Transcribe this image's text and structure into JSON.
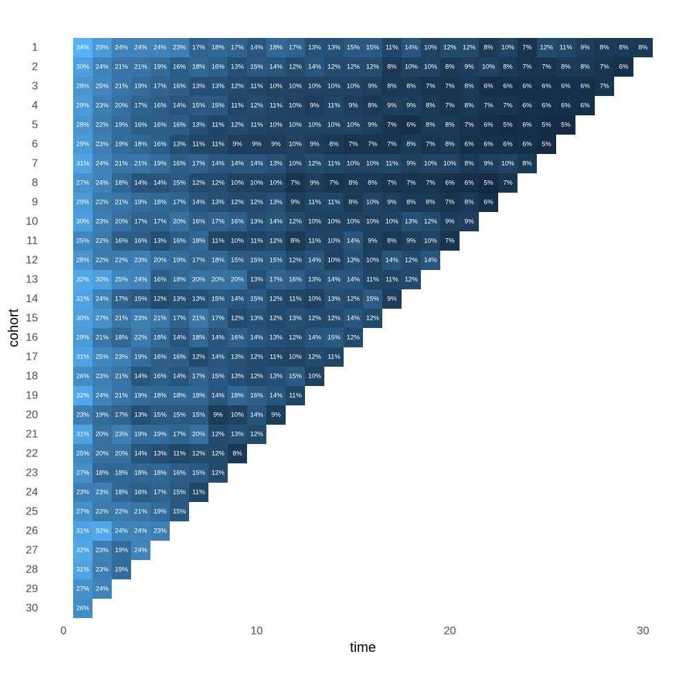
{
  "chart_data": {
    "type": "heatmap",
    "title": "",
    "xlabel": "time",
    "ylabel": "cohort",
    "xlim": [
      0,
      30.5
    ],
    "ylim": [
      0.5,
      30.5
    ],
    "x_ticks": [
      0,
      10,
      20,
      30
    ],
    "y_categories": [
      1,
      2,
      3,
      4,
      5,
      6,
      7,
      8,
      9,
      10,
      11,
      12,
      13,
      14,
      15,
      16,
      17,
      18,
      19,
      20,
      21,
      22,
      23,
      24,
      25,
      26,
      27,
      28,
      29,
      30
    ],
    "y_order": "top-to-bottom",
    "grid": false,
    "legend": "none",
    "value_format": "percent",
    "color_scale": {
      "low": "#132b43",
      "high": "#56b1f7"
    },
    "rows": [
      {
        "cohort": 1,
        "values": [
          34,
          29,
          24,
          24,
          24,
          23,
          17,
          18,
          17,
          14,
          18,
          17,
          13,
          13,
          15,
          15,
          11,
          14,
          10,
          12,
          12,
          8,
          10,
          7,
          12,
          11,
          9,
          8,
          8,
          8
        ]
      },
      {
        "cohort": 2,
        "values": [
          30,
          24,
          21,
          21,
          19,
          16,
          18,
          16,
          13,
          15,
          14,
          12,
          14,
          12,
          12,
          12,
          8,
          10,
          10,
          8,
          9,
          10,
          8,
          7,
          7,
          8,
          8,
          7,
          6
        ]
      },
      {
        "cohort": 3,
        "values": [
          28,
          25,
          21,
          19,
          17,
          16,
          13,
          13,
          12,
          11,
          10,
          10,
          10,
          10,
          10,
          9,
          8,
          8,
          7,
          7,
          8,
          6,
          6,
          6,
          6,
          6,
          6,
          7
        ]
      },
      {
        "cohort": 4,
        "values": [
          29,
          23,
          20,
          17,
          16,
          14,
          15,
          15,
          11,
          12,
          11,
          10,
          9,
          11,
          9,
          8,
          9,
          9,
          8,
          7,
          8,
          7,
          7,
          6,
          6,
          6,
          6
        ]
      },
      {
        "cohort": 5,
        "values": [
          28,
          22,
          19,
          16,
          16,
          16,
          13,
          11,
          12,
          11,
          10,
          10,
          10,
          10,
          10,
          9,
          7,
          6,
          8,
          8,
          7,
          6,
          5,
          6,
          5,
          5
        ]
      },
      {
        "cohort": 6,
        "values": [
          29,
          23,
          19,
          18,
          16,
          13,
          11,
          11,
          9,
          9,
          9,
          10,
          9,
          8,
          7,
          7,
          7,
          8,
          7,
          8,
          6,
          6,
          6,
          6,
          5
        ]
      },
      {
        "cohort": 7,
        "values": [
          31,
          24,
          21,
          21,
          19,
          16,
          17,
          14,
          14,
          14,
          13,
          10,
          12,
          11,
          10,
          10,
          11,
          9,
          10,
          10,
          8,
          9,
          10,
          8
        ]
      },
      {
        "cohort": 8,
        "values": [
          27,
          24,
          18,
          14,
          14,
          15,
          12,
          12,
          10,
          10,
          10,
          7,
          9,
          7,
          8,
          8,
          7,
          7,
          7,
          6,
          6,
          5,
          7
        ]
      },
      {
        "cohort": 9,
        "values": [
          29,
          22,
          21,
          19,
          18,
          17,
          14,
          13,
          12,
          12,
          13,
          9,
          11,
          11,
          8,
          10,
          9,
          8,
          8,
          7,
          8,
          6
        ]
      },
      {
        "cohort": 10,
        "values": [
          30,
          23,
          20,
          17,
          17,
          20,
          16,
          17,
          16,
          13,
          14,
          12,
          10,
          10,
          10,
          10,
          10,
          13,
          12,
          9,
          9
        ]
      },
      {
        "cohort": 11,
        "values": [
          25,
          22,
          16,
          16,
          13,
          16,
          18,
          11,
          10,
          11,
          12,
          8,
          11,
          10,
          14,
          9,
          8,
          9,
          10,
          7
        ]
      },
      {
        "cohort": 12,
        "values": [
          28,
          22,
          22,
          23,
          20,
          19,
          17,
          18,
          15,
          15,
          15,
          12,
          14,
          10,
          13,
          10,
          14,
          12,
          14
        ]
      },
      {
        "cohort": 13,
        "values": [
          32,
          30,
          25,
          24,
          16,
          18,
          20,
          20,
          20,
          13,
          17,
          16,
          13,
          14,
          14,
          11,
          11,
          12
        ]
      },
      {
        "cohort": 14,
        "values": [
          31,
          24,
          17,
          15,
          12,
          13,
          13,
          15,
          14,
          15,
          12,
          11,
          10,
          13,
          12,
          15,
          9
        ]
      },
      {
        "cohort": 15,
        "values": [
          30,
          27,
          21,
          23,
          21,
          17,
          21,
          17,
          12,
          13,
          12,
          13,
          12,
          12,
          14,
          12
        ]
      },
      {
        "cohort": 16,
        "values": [
          29,
          21,
          18,
          22,
          18,
          14,
          18,
          14,
          16,
          14,
          13,
          12,
          14,
          15,
          12
        ]
      },
      {
        "cohort": 17,
        "values": [
          31,
          25,
          23,
          19,
          16,
          16,
          12,
          14,
          13,
          12,
          11,
          10,
          12,
          11
        ]
      },
      {
        "cohort": 18,
        "values": [
          26,
          23,
          21,
          14,
          16,
          14,
          17,
          15,
          13,
          12,
          13,
          15,
          10
        ]
      },
      {
        "cohort": 19,
        "values": [
          32,
          24,
          21,
          19,
          18,
          18,
          18,
          14,
          18,
          16,
          14,
          11
        ]
      },
      {
        "cohort": 20,
        "values": [
          23,
          19,
          17,
          13,
          15,
          15,
          15,
          9,
          10,
          14,
          9
        ]
      },
      {
        "cohort": 21,
        "values": [
          31,
          20,
          23,
          19,
          19,
          17,
          20,
          12,
          13,
          12
        ]
      },
      {
        "cohort": 22,
        "values": [
          25,
          20,
          20,
          14,
          13,
          11,
          12,
          12,
          8
        ]
      },
      {
        "cohort": 23,
        "values": [
          27,
          18,
          18,
          18,
          18,
          16,
          15,
          12
        ]
      },
      {
        "cohort": 24,
        "values": [
          23,
          23,
          18,
          16,
          17,
          15,
          11
        ]
      },
      {
        "cohort": 25,
        "values": [
          27,
          22,
          22,
          21,
          19,
          15
        ]
      },
      {
        "cohort": 26,
        "values": [
          31,
          32,
          24,
          24,
          23
        ]
      },
      {
        "cohort": 27,
        "values": [
          32,
          23,
          19,
          24
        ]
      },
      {
        "cohort": 28,
        "values": [
          31,
          23,
          19
        ]
      },
      {
        "cohort": 29,
        "values": [
          27,
          24
        ]
      },
      {
        "cohort": 30,
        "values": [
          26
        ]
      }
    ]
  }
}
